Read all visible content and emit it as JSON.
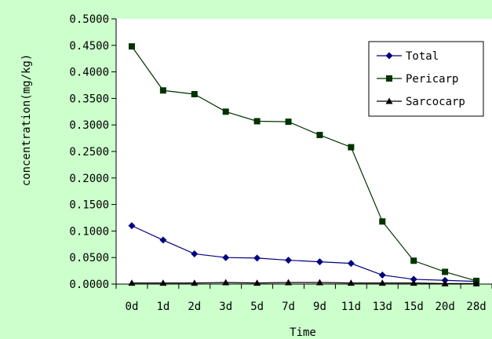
{
  "chart_data": {
    "type": "line",
    "title": "",
    "xlabel": "Time",
    "ylabel": "concentration(mg/kg)",
    "categories": [
      "0d",
      "1d",
      "2d",
      "3d",
      "5d",
      "7d",
      "9d",
      "11d",
      "13d",
      "15d",
      "20d",
      "28d"
    ],
    "ylim": [
      0,
      0.5
    ],
    "y_ticks": [
      "0.0000",
      "0.0500",
      "0.1000",
      "0.1500",
      "0.2000",
      "0.2500",
      "0.3000",
      "0.3500",
      "0.4000",
      "0.4500",
      "0.5000"
    ],
    "grid": false,
    "legend_position": "top-right",
    "series": [
      {
        "name": "Total",
        "marker": "diamond",
        "color": "#000080",
        "values": [
          0.11,
          0.083,
          0.057,
          0.05,
          0.049,
          0.045,
          0.042,
          0.039,
          0.017,
          0.009,
          0.007,
          0.005
        ]
      },
      {
        "name": "Pericarp",
        "marker": "square",
        "color": "#003300",
        "values": [
          0.448,
          0.365,
          0.358,
          0.325,
          0.307,
          0.306,
          0.281,
          0.258,
          0.118,
          0.044,
          0.023,
          0.006
        ]
      },
      {
        "name": "Sarcocarp",
        "marker": "triangle",
        "color": "#000000",
        "values": [
          0.002,
          0.002,
          0.002,
          0.003,
          0.002,
          0.003,
          0.003,
          0.002,
          0.002,
          0.002,
          0.001,
          0.001
        ]
      }
    ],
    "colors": {
      "outer_background": "#ccffcc",
      "plot_background": "#ffffff"
    }
  }
}
